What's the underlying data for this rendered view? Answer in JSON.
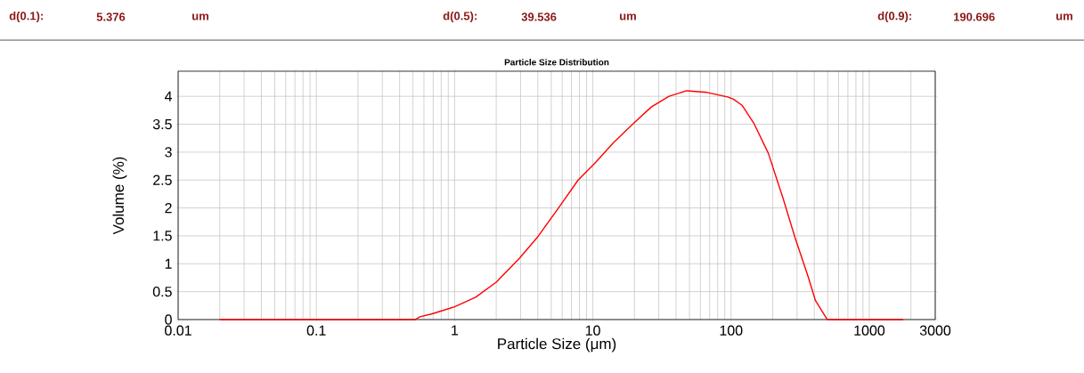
{
  "chart_data": {
    "type": "line",
    "title": "Particle Size Distribution",
    "xlabel": "Particle Size (μm)",
    "ylabel": "Volume (%)",
    "annotations": [
      "d(0.1):",
      "5.376",
      "um",
      "d(0.5):",
      "39.536",
      "um",
      "d(0.9):",
      "190.696",
      "um"
    ],
    "log": "x",
    "grid": true,
    "xlim": [
      0.01,
      3000
    ],
    "ylim": [
      0,
      4.45
    ],
    "xticks": [
      0.01,
      0.1,
      1,
      10,
      100,
      1000,
      3000
    ],
    "yticks": [
      0,
      0.5,
      1,
      1.5,
      2,
      2.5,
      3,
      3.5,
      4
    ],
    "series": [
      {
        "color": "#ff0000",
        "x": [
          0.02,
          0.52,
          0.56,
          0.68,
          1.0,
          1.42,
          2.0,
          2.95,
          3.96,
          5.57,
          7.83,
          10.5,
          14.1,
          19.8,
          26.5,
          35.6,
          47.7,
          67,
          94.3,
          104,
          120,
          146,
          186,
          238,
          290,
          361,
          408,
          496,
          1760
        ],
        "values": [
          0,
          0,
          0.05,
          0.1,
          0.23,
          0.4,
          0.67,
          1.1,
          1.47,
          1.98,
          2.5,
          2.82,
          3.17,
          3.52,
          3.81,
          4.0,
          4.1,
          4.07,
          3.99,
          3.95,
          3.84,
          3.52,
          2.98,
          2.17,
          1.47,
          0.77,
          0.34,
          0,
          0
        ]
      }
    ]
  }
}
